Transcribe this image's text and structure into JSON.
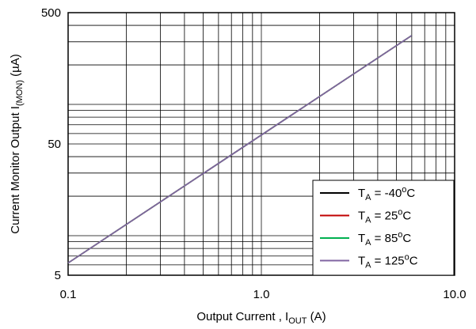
{
  "chart_data": {
    "type": "line",
    "xscale": "log",
    "yscale": "log",
    "xlim": [
      0.1,
      10.0
    ],
    "ylim": [
      5,
      500
    ],
    "x_ticks": [
      {
        "value": 0.1,
        "label": "0.1"
      },
      {
        "value": 1.0,
        "label": "1.0"
      },
      {
        "value": 10.0,
        "label": "10.0"
      }
    ],
    "y_ticks": [
      {
        "value": 5,
        "label": "5"
      },
      {
        "value": 50,
        "label": "50"
      },
      {
        "value": 500,
        "label": "500"
      }
    ],
    "grid": true,
    "legend_position": "bottom-right",
    "xlabel": {
      "main": "Output Current , I",
      "sub": "OUT",
      "unit": " (A)"
    },
    "ylabel": {
      "main": "Current Monitor Output I",
      "sub": "(MON)",
      "unit": " (µA)"
    },
    "series": [
      {
        "legend": {
          "prefix": "T",
          "sub": "A",
          "rest": " = -40",
          "sup": "o",
          "unit": "C"
        },
        "color": "#000000",
        "x": [
          0.1,
          6.0
        ],
        "y": [
          6.2,
          335
        ]
      },
      {
        "legend": {
          "prefix": "T",
          "sub": "A",
          "rest": " = 25",
          "sup": "o",
          "unit": "C"
        },
        "color": "#c00000",
        "x": [
          0.1,
          6.0
        ],
        "y": [
          6.2,
          335
        ]
      },
      {
        "legend": {
          "prefix": "T",
          "sub": "A",
          "rest": " = 85",
          "sup": "o",
          "unit": "C"
        },
        "color": "#00b050",
        "x": [
          0.1,
          6.0
        ],
        "y": [
          6.2,
          335
        ]
      },
      {
        "legend": {
          "prefix": "T",
          "sub": "A",
          "rest": " = 125",
          "sup": "o",
          "unit": "C"
        },
        "color": "#8064a2",
        "x": [
          0.1,
          6.0
        ],
        "y": [
          6.2,
          335
        ]
      }
    ]
  }
}
